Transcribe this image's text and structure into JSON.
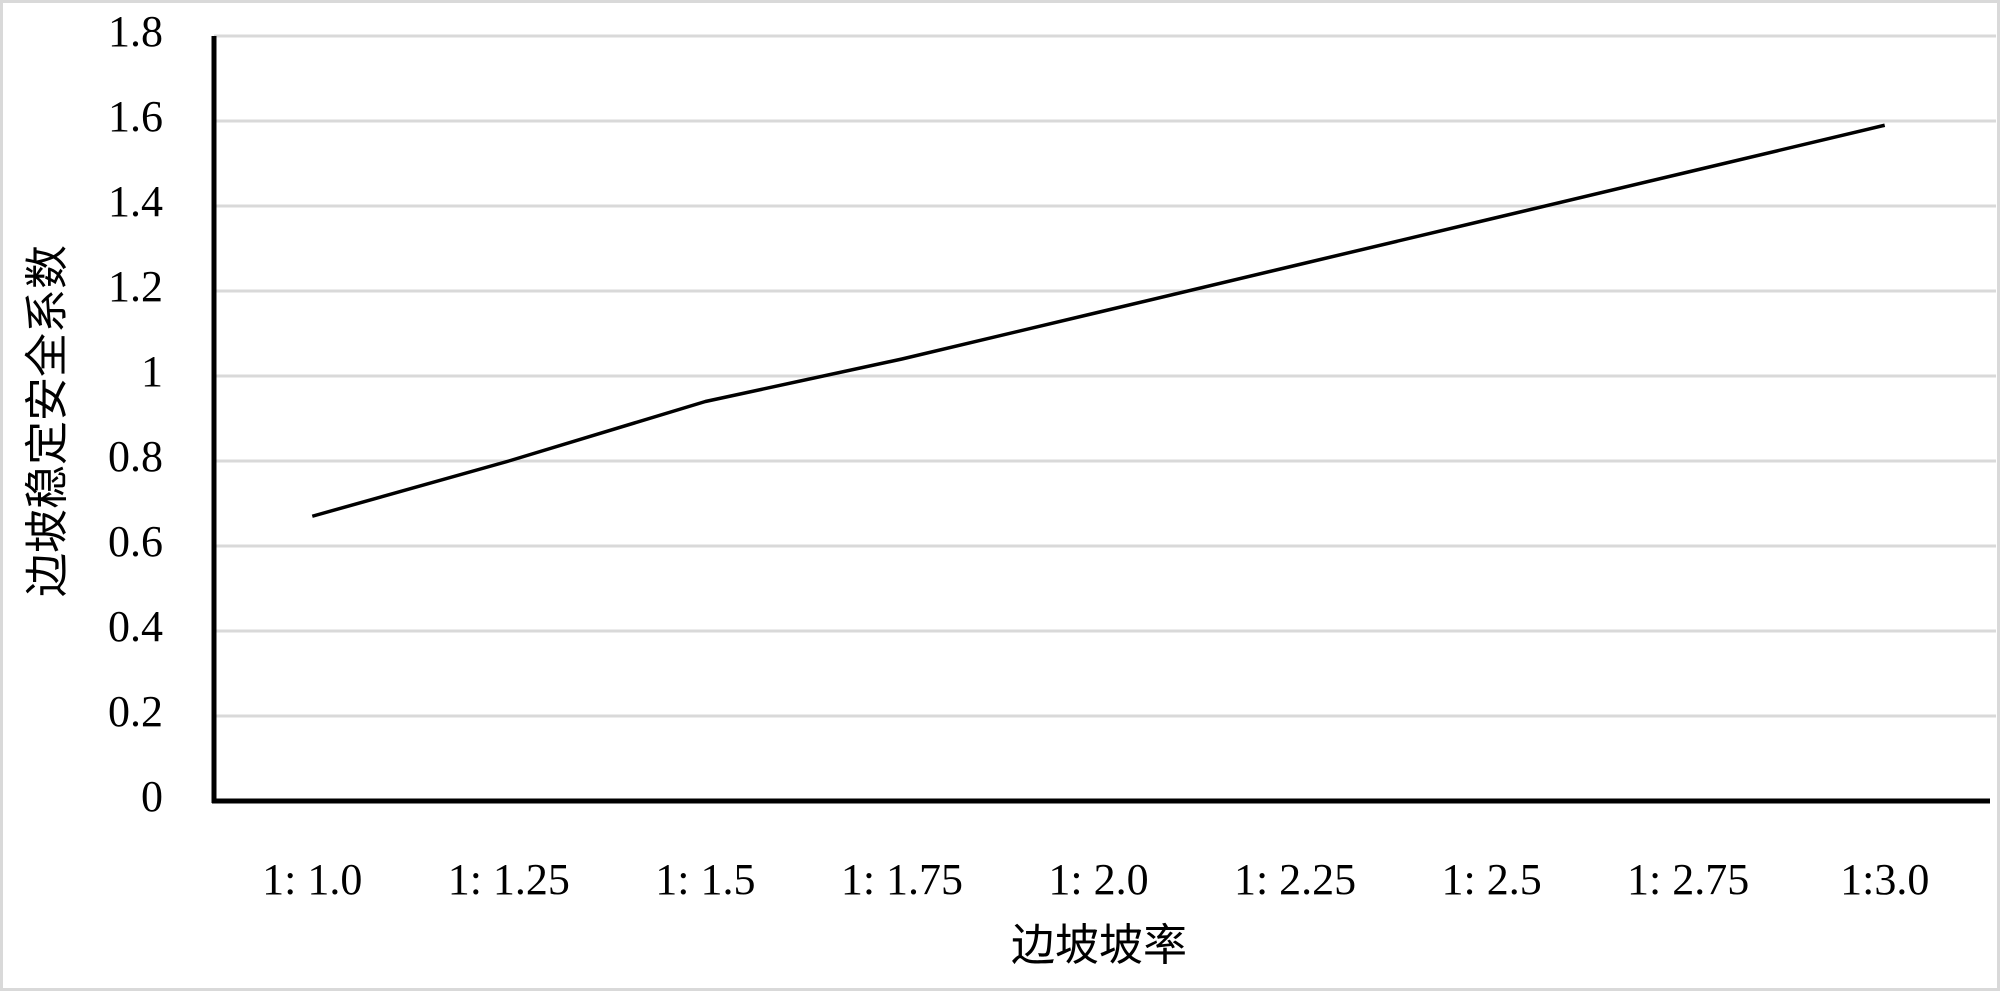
{
  "chart_data": {
    "type": "line",
    "x_label": "边坡坡率",
    "y_label": "边坡稳定安全系数",
    "categories": [
      "1: 1.0",
      "1: 1.25",
      "1: 1.5",
      "1: 1.75",
      "1: 2.0",
      "1: 2.25",
      "1: 2.5",
      "1: 2.75",
      "1:3.0"
    ],
    "values": [
      0.67,
      0.8,
      0.94,
      1.04,
      1.15,
      1.26,
      1.37,
      1.48,
      1.59
    ],
    "color": "#000000",
    "ylim": [
      0,
      1.8
    ],
    "yticks": [
      0,
      0.2,
      0.4,
      0.6,
      0.8,
      1,
      1.2,
      1.4,
      1.6,
      1.8
    ],
    "grid": true
  }
}
